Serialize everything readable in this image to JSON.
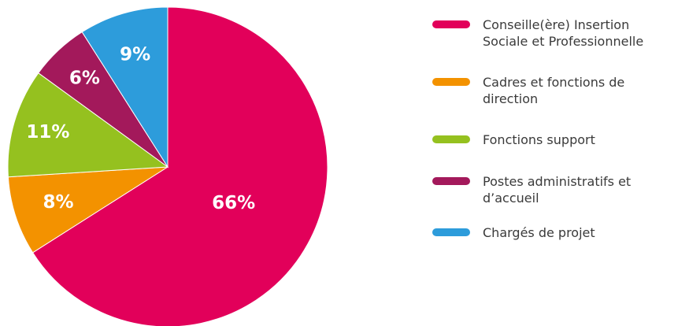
{
  "chart_data": {
    "type": "pie",
    "labels": [
      "Conseille(ère) Insertion Sociale et Professionnelle",
      "Cadres et fonctions de direction",
      "Fonctions support",
      "Postes administratifs et d’accueil",
      "Chargés de projet"
    ],
    "values": [
      66,
      8,
      11,
      6,
      9
    ],
    "value_labels": [
      "66%",
      "8%",
      "11%",
      "6%",
      "9%"
    ],
    "colors": [
      "#e2005a",
      "#f39200",
      "#95c11f",
      "#a3195b",
      "#2d9cdb"
    ],
    "legend_lines": [
      [
        "Conseille(ère) Insertion",
        "Sociale et Professionnelle"
      ],
      [
        "Cadres et fonctions de",
        "direction"
      ],
      [
        "Fonctions support"
      ],
      [
        "Postes administratifs et",
        "d’accueil"
      ],
      [
        "Chargés de projet"
      ]
    ],
    "start": "12 o'clock",
    "direction": "clockwise",
    "legend_position": "right"
  }
}
